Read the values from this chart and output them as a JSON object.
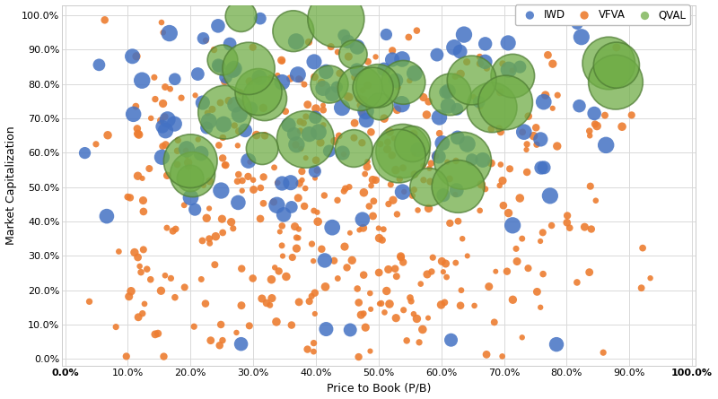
{
  "xlabel": "Price to Book (P/B)",
  "ylabel": "Market Capitalization",
  "xlim": [
    -0.005,
    1.005
  ],
  "ylim": [
    -0.02,
    1.03
  ],
  "xticks": [
    0.0,
    0.1,
    0.2,
    0.3,
    0.4,
    0.5,
    0.6,
    0.7,
    0.8,
    0.9,
    1.0
  ],
  "yticks": [
    0.0,
    0.1,
    0.2,
    0.3,
    0.4,
    0.5,
    0.6,
    0.7,
    0.8,
    0.9,
    1.0
  ],
  "iwd_color": "#4472C4",
  "vfva_color": "#ED7D31",
  "qval_color": "#70AD47",
  "qval_edge_color": "#507E35",
  "background_color": "#FFFFFF",
  "grid_color": "#D9D9D9",
  "legend_labels": [
    "IWD",
    "VFVA",
    "QVAL"
  ],
  "iwd_base_size": 120,
  "vfva_base_size": 28,
  "qval_base_size": 800,
  "seed": 99
}
